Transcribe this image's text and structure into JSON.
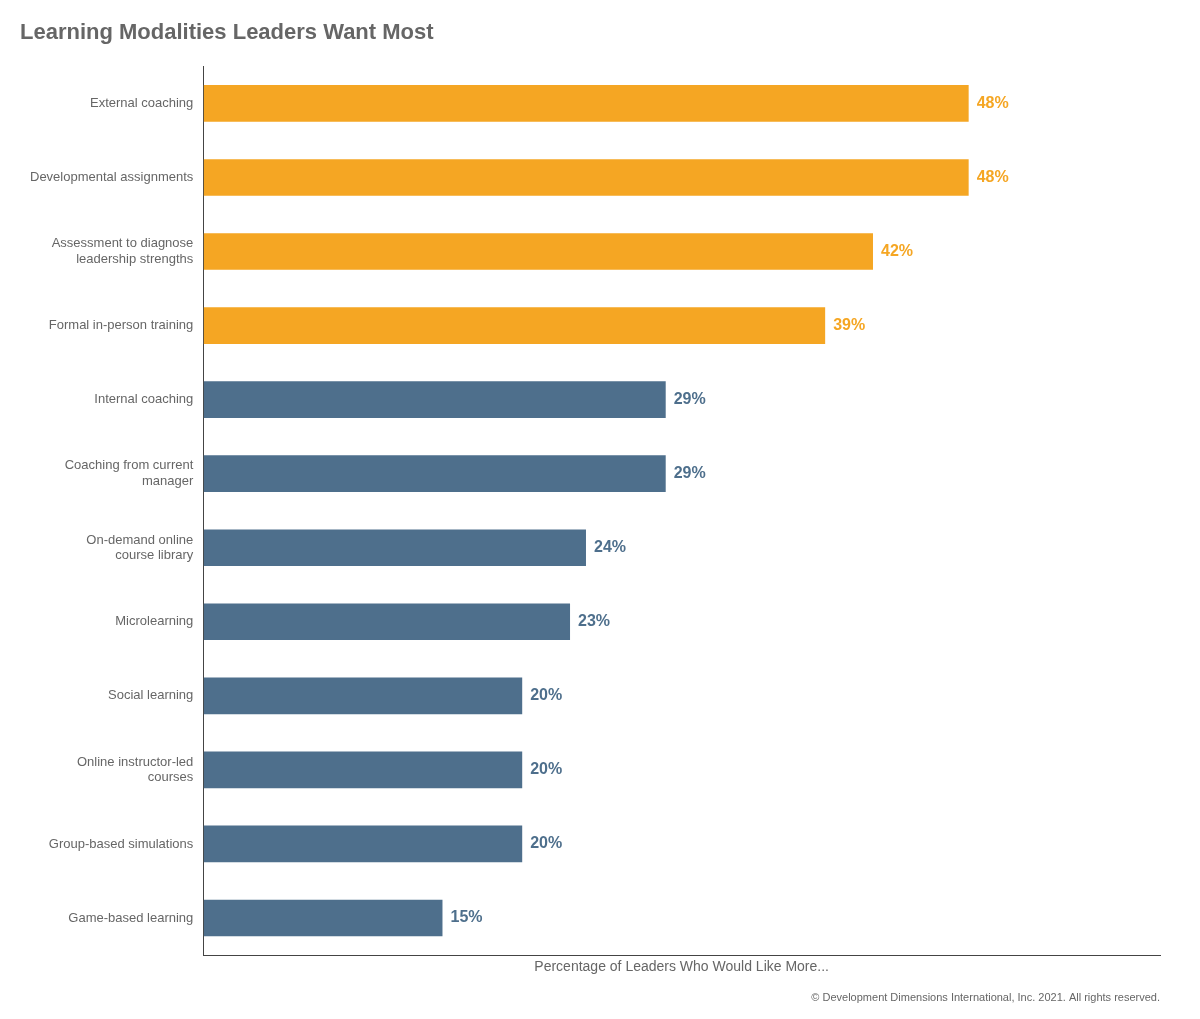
{
  "chart_data": {
    "type": "bar",
    "orientation": "horizontal",
    "title": "Learning Modalities Leaders Want Most",
    "x_label": "Percentage of Leaders Who Would Like More...",
    "annotations": [
      "© Development Dimensions International, Inc. 2021. All rights reserved."
    ],
    "categories": [
      "External coaching",
      "Developmental assignments",
      "Assessment to diagnose\nleadership strengths",
      "Formal in-person training",
      "Internal coaching",
      "Coaching from current\nmanager",
      "On-demand online\ncourse library",
      "Microlearning",
      "Social learning",
      "Online instructor-led\ncourses",
      "Group-based simulations",
      "Game-based learning"
    ],
    "values": [
      48,
      48,
      42,
      39,
      29,
      29,
      24,
      23,
      20,
      20,
      20,
      15
    ],
    "value_labels": [
      "48%",
      "48%",
      "42%",
      "39%",
      "29%",
      "29%",
      "24%",
      "23%",
      "20%",
      "20%",
      "20%",
      "15%"
    ],
    "data_labels": true,
    "colors": [
      "#F5A623",
      "#F5A623",
      "#F5A623",
      "#F5A623",
      "#4E6F8C",
      "#4E6F8C",
      "#4E6F8C",
      "#4E6F8C",
      "#4E6F8C",
      "#4E6F8C",
      "#4E6F8C",
      "#4E6F8C"
    ],
    "xlim": [
      0,
      60
    ],
    "tick_labels": "y",
    "grid": false
  }
}
